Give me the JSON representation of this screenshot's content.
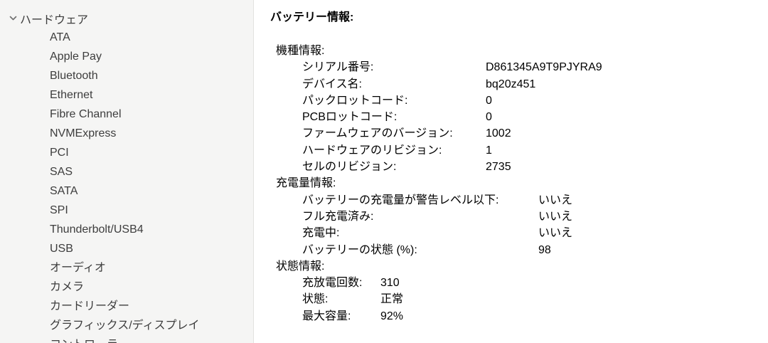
{
  "sidebar": {
    "root": {
      "label": "ハードウェア",
      "expanded": true,
      "chevron_icon": "chevron-down-icon"
    },
    "items": [
      "ATA",
      "Apple Pay",
      "Bluetooth",
      "Ethernet",
      "Fibre Channel",
      "NVMExpress",
      "PCI",
      "SAS",
      "SATA",
      "SPI",
      "Thunderbolt/USB4",
      "USB",
      "オーディオ",
      "カメラ",
      "カードリーダー",
      "グラフィックス/ディスプレイ",
      "コントローラ"
    ]
  },
  "content": {
    "title": "バッテリー情報:",
    "sections": [
      {
        "header": "機種情報:",
        "rows": [
          {
            "label": "シリアル番号:",
            "value": "D861345A9T9PJYRA9"
          },
          {
            "label": "デバイス名:",
            "value": "bq20z451"
          },
          {
            "label": "パックロットコード:",
            "value": "0"
          },
          {
            "label": "PCBロットコード:",
            "value": "0"
          },
          {
            "label": "ファームウェアのバージョン:",
            "value": "1002"
          },
          {
            "label": "ハードウェアのリビジョン:",
            "value": "1"
          },
          {
            "label": "セルのリビジョン:",
            "value": "2735"
          }
        ]
      },
      {
        "header": "充電量情報:",
        "rows": [
          {
            "label": "バッテリーの充電量が警告レベル以下:",
            "value": "いいえ"
          },
          {
            "label": "フル充電済み:",
            "value": "いいえ"
          },
          {
            "label": "充電中:",
            "value": "いいえ"
          },
          {
            "label": "バッテリーの状態 (%):",
            "value": "98"
          }
        ]
      },
      {
        "header": "状態情報:",
        "rows": [
          {
            "label": "充放電回数:",
            "value": "310"
          },
          {
            "label": "状態:",
            "value": "正常"
          },
          {
            "label": "最大容量:",
            "value": "92%"
          }
        ]
      }
    ]
  },
  "colors": {
    "sidebar_background": "#f5f5f4",
    "sidebar_divider": "#e2e2e0",
    "sidebar_text": "#3d3d3d",
    "content_background": "#ffffff",
    "content_text": "#000000",
    "chevron": "#6f6f6f"
  }
}
